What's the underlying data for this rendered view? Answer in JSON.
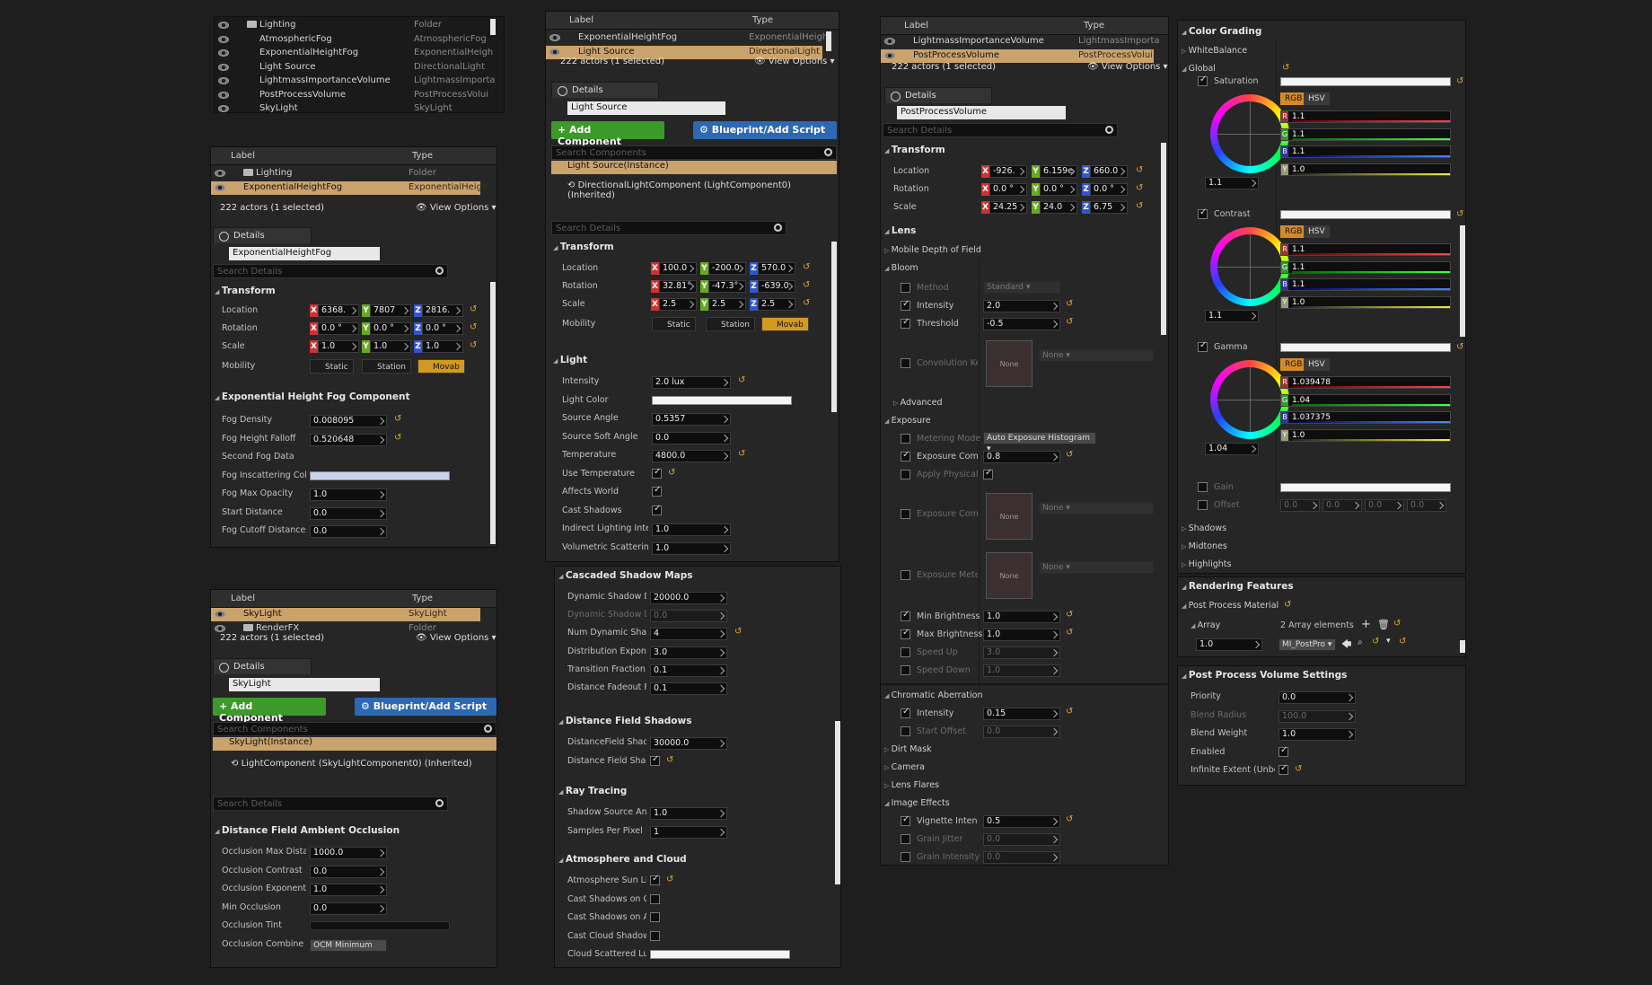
{
  "panelA": {
    "rows": [
      {
        "label": "Lighting",
        "type": "Folder",
        "sel": false,
        "folder": true,
        "indent": 0
      },
      {
        "label": "AtmosphericFog",
        "type": "AtmosphericFog",
        "indent": 1
      },
      {
        "label": "ExponentialHeightFog",
        "type": "ExponentialHeigh",
        "indent": 1
      },
      {
        "label": "Light Source",
        "type": "DirectionalLight",
        "indent": 1
      },
      {
        "label": "LightmassImportanceVolume",
        "type": "LightmassImporta",
        "indent": 1
      },
      {
        "label": "PostProcessVolume",
        "type": "PostProcessVolui",
        "indent": 1
      },
      {
        "label": "SkyLight",
        "type": "SkyLight",
        "indent": 1
      }
    ]
  },
  "panelB": {
    "col_label": "Label",
    "col_type": "Type",
    "rows": [
      {
        "label": "Lighting",
        "type": "Folder"
      },
      {
        "label": "ExponentialHeightFog",
        "type": "ExponentialHeigh"
      }
    ],
    "count": "222 actors (1 selected)",
    "view_options": "View Options",
    "details_tab": "Details",
    "name": "ExponentialHeightFog",
    "search": "Search Details",
    "transform": "Transform",
    "location": "Location",
    "rotation": "Rotation",
    "scale": "Scale",
    "mobility": "Mobility",
    "loc": [
      "6368.",
      "7807",
      "2816."
    ],
    "rot": [
      "0.0 °",
      "0.0 °",
      "0.0 °"
    ],
    "scl": [
      "1.0",
      "1.0",
      "1.0"
    ],
    "static": "Static",
    "station": "Station",
    "movab": "Movab",
    "fog_sect": "Exponential Height Fog Component",
    "props": [
      {
        "k": "Fog Density",
        "v": "0.008095",
        "rst": true
      },
      {
        "k": "Fog Height Falloff",
        "v": "0.520648",
        "rst": true
      },
      {
        "k": "Second Fog Data",
        "v": ""
      },
      {
        "k": "Fog Inscattering Color",
        "v": ""
      },
      {
        "k": "Fog Max Opacity",
        "v": "1.0"
      },
      {
        "k": "Start Distance",
        "v": "0.0"
      },
      {
        "k": "Fog Cutoff Distance",
        "v": "0.0"
      }
    ]
  },
  "panelC": {
    "col_label": "Label",
    "col_type": "Type",
    "rows": [
      {
        "label": "SkyLight",
        "type": "SkyLight"
      },
      {
        "label": "RenderFX",
        "type": "Folder"
      }
    ],
    "count": "222 actors (1 selected)",
    "view_options": "View Options",
    "details_tab": "Details",
    "name": "SkyLight",
    "add": "+ Add Component",
    "bp": "Blueprint/Add Script",
    "search_comp": "Search Components",
    "search": "Search Details",
    "comp_instance": "SkyLight(Instance)",
    "comp_child": "LightComponent (SkyLightComponent0) (Inherited)",
    "dfao": "Distance Field Ambient Occlusion",
    "props": [
      {
        "k": "Occlusion Max Distan",
        "v": "1000.0"
      },
      {
        "k": "Occlusion Contrast",
        "v": "0.0"
      },
      {
        "k": "Occlusion Exponent",
        "v": "1.0"
      },
      {
        "k": "Min Occlusion",
        "v": "0.0"
      },
      {
        "k": "Occlusion Tint",
        "v": ""
      },
      {
        "k": "Occlusion Combine M",
        "v": "OCM Minimum"
      }
    ]
  },
  "panelD": {
    "col_label": "Label",
    "col_type": "Type",
    "rows": [
      {
        "label": "ExponentialHeightFog",
        "type": "ExponentialHeigh"
      },
      {
        "label": "Light Source",
        "type": "DirectionalLight"
      }
    ],
    "count": "222 actors (1 selected)",
    "view_options": "View Options",
    "details_tab": "Details",
    "name": "Light Source",
    "add": "+ Add Component",
    "bp": "Blueprint/Add Script",
    "search_comp": "Search Components",
    "search": "Search Details",
    "comp_instance": "Light Source(Instance)",
    "comp_child": "DirectionalLightComponent (LightComponent0) (Inherited)",
    "transform": "Transform",
    "location": "Location",
    "rotation": "Rotation",
    "scale": "Scale",
    "mobility": "Mobility",
    "loc": [
      "100.0",
      "-200.0",
      "570.0"
    ],
    "rot": [
      "32.81°",
      "-47.3°",
      "-639.0"
    ],
    "scl": [
      "2.5",
      "2.5",
      "2.5"
    ],
    "static": "Static",
    "station": "Station",
    "movab": "Movab",
    "light": "Light",
    "props": [
      {
        "k": "Intensity",
        "v": "2.0 lux",
        "rst": true
      },
      {
        "k": "Light Color",
        "v": ""
      },
      {
        "k": "Source Angle",
        "v": "0.5357"
      },
      {
        "k": "Source Soft Angle",
        "v": "0.0"
      },
      {
        "k": "Temperature",
        "v": "4800.0",
        "rst": true
      },
      {
        "k": "Use Temperature",
        "v": "",
        "chk": true,
        "rst": true
      },
      {
        "k": "Affects World",
        "v": "",
        "chk": true
      },
      {
        "k": "Cast Shadows",
        "v": "",
        "chk": true
      },
      {
        "k": "Indirect Lighting Inten",
        "v": "1.0"
      },
      {
        "k": "Volumetric Scattering",
        "v": "1.0"
      }
    ],
    "csm": "Cascaded Shadow Maps",
    "csm_props": [
      {
        "k": "Dynamic Shadow Dist",
        "v": "20000.0"
      },
      {
        "k": "Dynamic Shadow Dist",
        "v": "0.0",
        "dim": true
      },
      {
        "k": "Num Dynamic Shadow",
        "v": "4",
        "rst": true
      },
      {
        "k": "Distribution Exponent",
        "v": "3.0"
      },
      {
        "k": "Transition Fraction",
        "v": "0.1"
      },
      {
        "k": "Distance Fadeout Frac",
        "v": "0.1"
      }
    ],
    "dfs": "Distance Field Shadows",
    "dfs_props": [
      {
        "k": "DistanceField Shadow",
        "v": "30000.0"
      },
      {
        "k": "Distance Field Shadow",
        "v": "",
        "chk": true,
        "rst": true
      }
    ],
    "rt": "Ray Tracing",
    "rt_props": [
      {
        "k": "Shadow Source Angle",
        "v": "1.0"
      },
      {
        "k": "Samples Per Pixel",
        "v": "1"
      }
    ],
    "atm": "Atmosphere and Cloud",
    "atm_props": [
      {
        "k": "Atmosphere Sun Light",
        "v": "",
        "chk": true,
        "rst": true
      },
      {
        "k": "Cast Shadows on Clou",
        "v": "",
        "chk": false
      },
      {
        "k": "Cast Shadows on Atm",
        "v": "",
        "chk": false
      },
      {
        "k": "Cast Cloud Shadows",
        "v": "",
        "chk": false
      },
      {
        "k": "Cloud Scattered Lumi",
        "v": ""
      }
    ]
  },
  "panelE": {
    "col_label": "Label",
    "col_type": "Type",
    "rows": [
      {
        "label": "LightmassImportanceVolume",
        "type": "LightmassImporta"
      },
      {
        "label": "PostProcessVolume",
        "type": "PostProcessVolui"
      }
    ],
    "count": "222 actors (1 selected)",
    "view_options": "View Options",
    "details_tab": "Details",
    "name": "PostProcessVolume",
    "search": "Search Details",
    "transform": "Transform",
    "location": "Location",
    "rotation": "Rotation",
    "scale": "Scale",
    "loc": [
      "-926.",
      "6.159e",
      "660.0"
    ],
    "rot": [
      "0.0 °",
      "0.0 °",
      "0.0 °"
    ],
    "scl": [
      "24.25",
      "24.0",
      "6.75"
    ],
    "lens": "Lens",
    "mdof": "Mobile Depth of Field",
    "bloom": "Bloom",
    "method": "Method",
    "method_v": "Standard",
    "intensity": "Intensity",
    "intensity_v": "2.0",
    "threshold": "Threshold",
    "threshold_v": "-0.5",
    "conv": "Convolution Ker",
    "none": "None",
    "advanced": "Advanced",
    "exposure": "Exposure",
    "metering": "Metering Mode",
    "metering_v": "Auto Exposure Histogram",
    "exp_comp": "Exposure Compe",
    "exp_comp_v": "0.8",
    "apply_phys": "Apply Physical C",
    "exp_comp2": "Exposure Compe",
    "exp_meter": "Exposure Meteri",
    "min_b": "Min Brightness",
    "min_b_v": "1.0",
    "max_b": "Max Brightness",
    "max_b_v": "1.0",
    "speed_up": "Speed Up",
    "speed_up_v": "3.0",
    "speed_down": "Speed Down",
    "speed_down_v": "1.0",
    "chrom": "Chromatic Aberration",
    "ca_int": "Intensity",
    "ca_int_v": "0.15",
    "ca_off": "Start Offset",
    "ca_off_v": "0.0",
    "dirt": "Dirt Mask",
    "camera": "Camera",
    "flares": "Lens Flares",
    "effects": "Image Effects",
    "vig": "Vignette Intensit",
    "vig_v": "0.5",
    "gj": "Grain Jitter",
    "gj_v": "0.0",
    "gi": "Grain Intensity",
    "gi_v": "0.0"
  },
  "panelF": {
    "cg": "Color Grading",
    "wb": "WhiteBalance",
    "global": "Global",
    "sat": "Saturation",
    "con": "Contrast",
    "gam": "Gamma",
    "rgb": "RGB",
    "hsv": "HSV",
    "sat_vals": [
      "1.1",
      "1.1",
      "1.1",
      "1.0"
    ],
    "sat_wheel": "1.1",
    "con_vals": [
      "1.1",
      "1.1",
      "1.1",
      "1.0"
    ],
    "con_wheel": "1.1",
    "gam_vals": [
      "1.039478",
      "1.04",
      "1.037375",
      "1.0"
    ],
    "gam_wheel": "1.04",
    "gain": "Gain",
    "offset": "Offset",
    "offset_vals": [
      "0.0",
      "0.0",
      "0.0",
      "0.0"
    ],
    "shadows": "Shadows",
    "midtones": "Midtones",
    "highlights": "Highlights",
    "rf": "Rendering Features",
    "ppm": "Post Process Material",
    "array": "Array",
    "array_v": "2 Array elements",
    "arr_w": "1.0",
    "arr_mat": "MI_PostPro",
    "ppvs": "Post Process Volume Settings",
    "props": [
      {
        "k": "Priority",
        "v": "0.0"
      },
      {
        "k": "Blend Radius",
        "v": "100.0",
        "dim": true
      },
      {
        "k": "Blend Weight",
        "v": "1.0"
      },
      {
        "k": "Enabled",
        "v": "",
        "chk": true
      },
      {
        "k": "Infinite Extent (Unbour",
        "v": "",
        "chk": true,
        "rst": true
      }
    ]
  },
  "colors": {
    "selected": "#caa26b",
    "add_green": "#3c9a2a",
    "bp_blue": "#2c68b4",
    "movable": "#d29a1e"
  }
}
